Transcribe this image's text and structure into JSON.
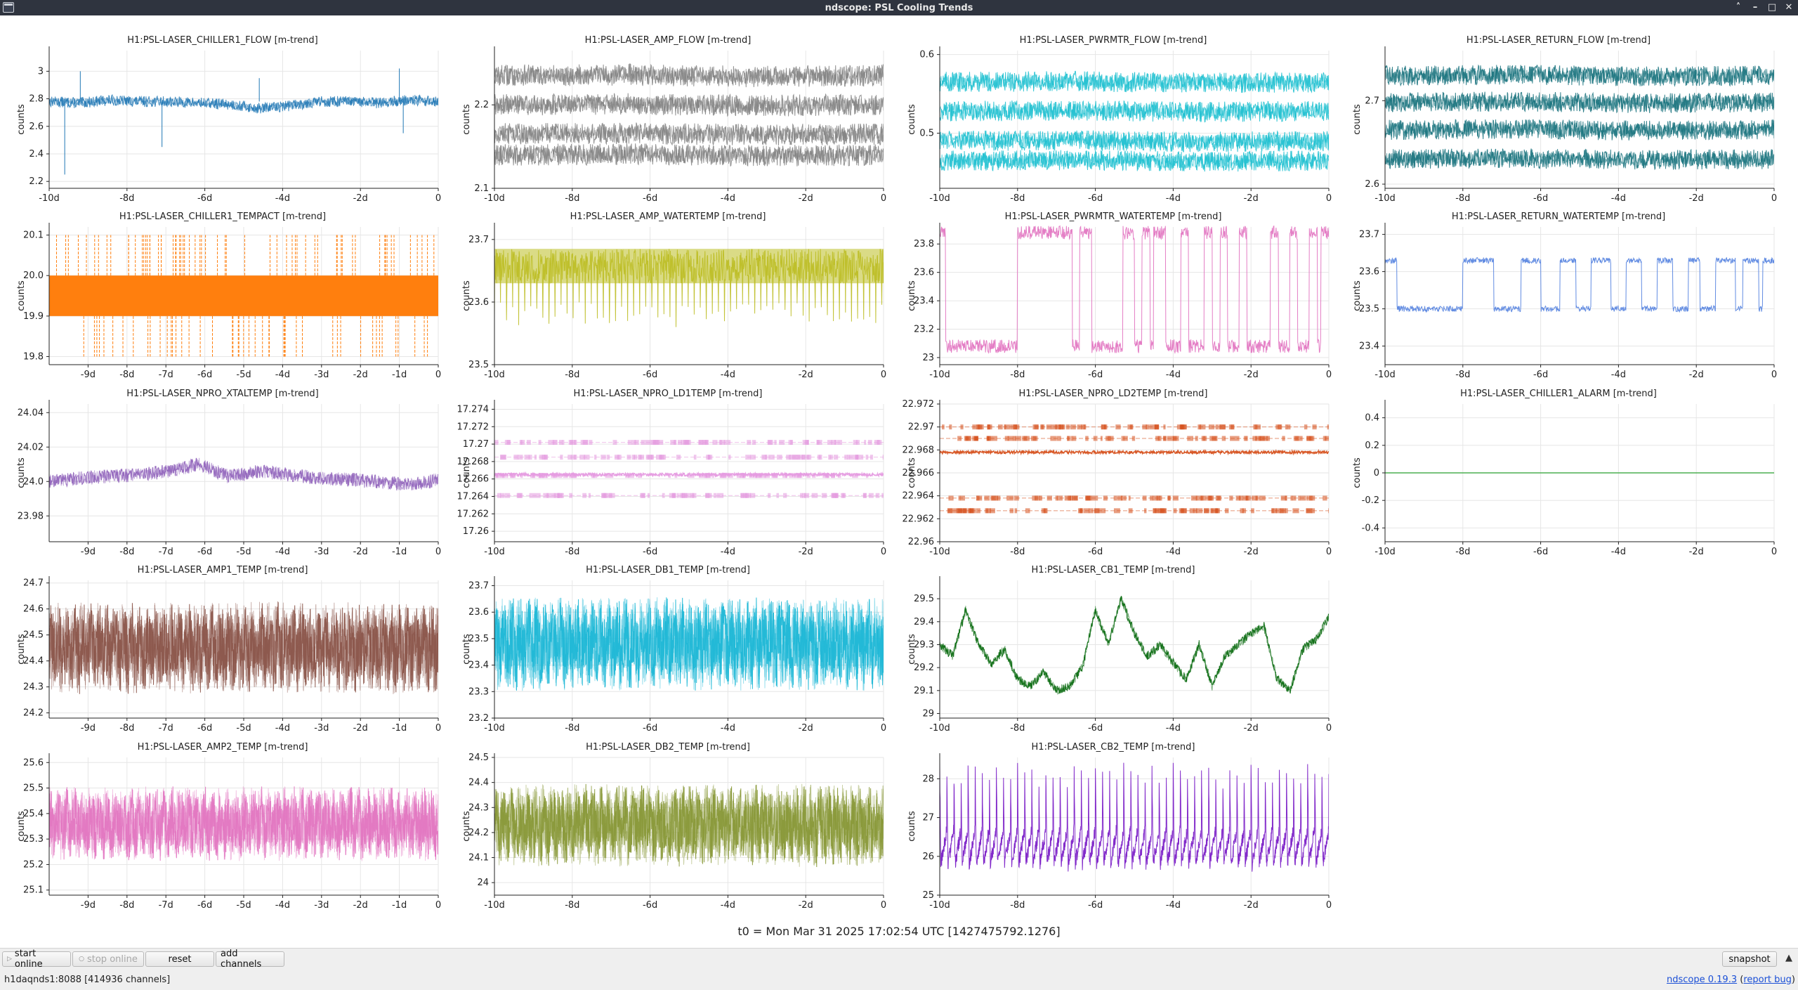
{
  "window": {
    "title": "ndscope: PSL Cooling Trends",
    "controls": [
      "˄",
      "–",
      "□",
      "✕"
    ]
  },
  "t0_label": "t0 = Mon Mar 31 2025 17:02:54 UTC [1427475792.1276]",
  "toolbar": {
    "start_online": "start online",
    "stop_online": "stop online",
    "reset": "reset",
    "add_channels": "add channels",
    "snapshot": "snapshot",
    "snapshot_arrow": "▲"
  },
  "status": {
    "server": "h1daqnds1:8088 [414936 channels]",
    "app_link": "ndscope 0.19.3",
    "report_bug_prefix": "(",
    "report_bug": "report bug",
    "report_bug_suffix": ")"
  },
  "colors": {
    "titlebar": "#2f343f",
    "grid": "#e6e6e6",
    "axis": "#222222"
  },
  "chart_data": [
    {
      "type": "line",
      "title": "H1:PSL-LASER_CHILLER1_FLOW [m-trend]",
      "ylabel": "counts",
      "ylim": [
        2.15,
        3.15
      ],
      "yticks": [
        2.2,
        2.4,
        2.6,
        2.8,
        3
      ],
      "xlim": [
        -10,
        0
      ],
      "xticks": [
        -10,
        -8,
        -6,
        -4,
        -2,
        0
      ],
      "xticklabels": [
        "-10d",
        "-8d",
        "-6d",
        "-4d",
        "-2d",
        "0"
      ],
      "color": "#1f77b4",
      "pattern": "bands",
      "series": [
        {
          "values": [
            2.78,
            2.77,
            2.79,
            2.78,
            2.78,
            2.77,
            2.76,
            2.73,
            2.75,
            2.78,
            2.78,
            2.77,
            2.79,
            2.78
          ]
        }
      ],
      "band_halfwidth": 0.04,
      "spikes": [
        [
          -9.6,
          2.25
        ],
        [
          -9.2,
          3.0
        ],
        [
          -7.1,
          2.45
        ],
        [
          -4.6,
          2.95
        ],
        [
          -1.0,
          3.02
        ],
        [
          -0.9,
          2.55
        ]
      ]
    },
    {
      "type": "line",
      "title": "H1:PSL-LASER_AMP_FLOW [m-trend]",
      "ylabel": "counts",
      "ylim": [
        2.1,
        2.265
      ],
      "yticks": [
        2.1,
        2.2
      ],
      "xlim": [
        -10,
        0
      ],
      "xticks": [
        -10,
        -8,
        -6,
        -4,
        -2,
        0
      ],
      "xticklabels": [
        "-10d",
        "-8d",
        "-6d",
        "-4d",
        "-2d",
        "0"
      ],
      "color": "#7f7f7f",
      "pattern": "bands",
      "series": [
        {
          "values": [
            2.235,
            2.236,
            2.234,
            2.235
          ]
        },
        {
          "values": [
            2.2,
            2.201,
            2.199,
            2.2
          ]
        },
        {
          "values": [
            2.165,
            2.166,
            2.164,
            2.165
          ]
        },
        {
          "values": [
            2.14,
            2.141,
            2.139,
            2.14
          ]
        }
      ],
      "band_halfwidth": 0.013
    },
    {
      "type": "line",
      "title": "H1:PSL-LASER_PWRMTR_FLOW [m-trend]",
      "ylabel": "counts",
      "ylim": [
        0.43,
        0.605
      ],
      "yticks": [
        0.5,
        0.6
      ],
      "xlim": [
        -10,
        0
      ],
      "xticks": [
        -10,
        -8,
        -6,
        -4,
        -2,
        0
      ],
      "xticklabels": [
        "-10d",
        "-8d",
        "-6d",
        "-4d",
        "-2d",
        "0"
      ],
      "color": "#17becf",
      "pattern": "bands",
      "series": [
        {
          "values": [
            0.565,
            0.566,
            0.564,
            0.565
          ]
        },
        {
          "values": [
            0.528,
            0.529,
            0.527,
            0.528
          ]
        },
        {
          "values": [
            0.49,
            0.491,
            0.489,
            0.49
          ]
        },
        {
          "values": [
            0.465,
            0.466,
            0.464,
            0.465
          ]
        }
      ],
      "band_halfwidth": 0.013
    },
    {
      "type": "line",
      "title": "H1:PSL-LASER_RETURN_FLOW [m-trend]",
      "ylabel": "counts",
      "ylim": [
        2.595,
        2.76
      ],
      "yticks": [
        2.6,
        2.7
      ],
      "xlim": [
        -10,
        0
      ],
      "xticks": [
        -10,
        -8,
        -6,
        -4,
        -2,
        0
      ],
      "xticklabels": [
        "-10d",
        "-8d",
        "-6d",
        "-4d",
        "-2d",
        "0"
      ],
      "color": "#136f7a",
      "pattern": "bands",
      "series": [
        {
          "values": [
            2.73,
            2.731,
            2.729,
            2.73
          ]
        },
        {
          "values": [
            2.698,
            2.699,
            2.697,
            2.698
          ]
        },
        {
          "values": [
            2.665,
            2.666,
            2.664,
            2.665
          ]
        },
        {
          "values": [
            2.63,
            2.631,
            2.629,
            2.63
          ]
        }
      ],
      "band_halfwidth": 0.012
    },
    {
      "type": "line",
      "title": "H1:PSL-LASER_CHILLER1_TEMPACT [m-trend]",
      "ylabel": "counts",
      "ylim": [
        19.78,
        20.12
      ],
      "yticks": [
        19.8,
        19.9,
        20.0,
        20.1
      ],
      "yticklabels": [
        "19.8",
        "19.9",
        "20.0",
        "20.1"
      ],
      "xlim": [
        -10,
        0
      ],
      "xticks": [
        -9,
        -8,
        -7,
        -6,
        -5,
        -4,
        -3,
        -2,
        -1,
        0
      ],
      "xticklabels": [
        "-9d",
        "-8d",
        "-7d",
        "-6d",
        "-5d",
        "-4d",
        "-3d",
        "-2d",
        "-1d",
        "0"
      ],
      "color": "#ff7f0e",
      "pattern": "solidband",
      "band": [
        19.9,
        20.0
      ],
      "spike_range": [
        19.8,
        20.1
      ]
    },
    {
      "type": "line",
      "title": "H1:PSL-LASER_AMP_WATERTEMP [m-trend]",
      "ylabel": "counts",
      "ylim": [
        23.5,
        23.72
      ],
      "yticks": [
        23.5,
        23.6,
        23.7
      ],
      "xlim": [
        -10,
        0
      ],
      "xticks": [
        -10,
        -8,
        -6,
        -4,
        -2,
        0
      ],
      "xticklabels": [
        "-10d",
        "-8d",
        "-6d",
        "-4d",
        "-2d",
        "0"
      ],
      "color": "#bcbd22",
      "pattern": "topband",
      "band": [
        23.63,
        23.685
      ],
      "dips_to": 23.56
    },
    {
      "type": "line",
      "title": "H1:PSL-LASER_PWRMTR_WATERTEMP [m-trend]",
      "ylabel": "counts",
      "ylim": [
        22.95,
        23.92
      ],
      "yticks": [
        23,
        23.2,
        23.4,
        23.6,
        23.8
      ],
      "xlim": [
        -10,
        0
      ],
      "xticks": [
        -10,
        -8,
        -6,
        -4,
        -2,
        0
      ],
      "xticklabels": [
        "-10d",
        "-8d",
        "-6d",
        "-4d",
        "-2d",
        "0"
      ],
      "color": "#e377c2",
      "pattern": "square",
      "levels": [
        23.08,
        23.88
      ],
      "high_intervals": [
        [
          -10,
          -9.85
        ],
        [
          -8.0,
          -6.6
        ],
        [
          -6.4,
          -6.1
        ],
        [
          -5.3,
          -5.0
        ],
        [
          -4.8,
          -4.6
        ],
        [
          -4.5,
          -4.2
        ],
        [
          -3.8,
          -3.6
        ],
        [
          -3.2,
          -3.0
        ],
        [
          -2.8,
          -2.6
        ],
        [
          -2.3,
          -2.1
        ],
        [
          -1.5,
          -1.3
        ],
        [
          -1.0,
          -0.8
        ],
        [
          -0.5,
          -0.3
        ],
        [
          -0.2,
          0
        ]
      ]
    },
    {
      "type": "line",
      "title": "H1:PSL-LASER_RETURN_WATERTEMP [m-trend]",
      "ylabel": "counts",
      "ylim": [
        23.35,
        23.72
      ],
      "yticks": [
        23.4,
        23.5,
        23.6,
        23.7
      ],
      "xlim": [
        -10,
        0
      ],
      "xticks": [
        -10,
        -8,
        -6,
        -4,
        -2,
        0
      ],
      "xticklabels": [
        "-10d",
        "-8d",
        "-6d",
        "-4d",
        "-2d",
        "0"
      ],
      "color": "#5a86e0",
      "pattern": "square",
      "levels": [
        23.5,
        23.63
      ],
      "high_intervals": [
        [
          -10,
          -9.7
        ],
        [
          -8.0,
          -7.2
        ],
        [
          -6.5,
          -6.0
        ],
        [
          -5.5,
          -5.1
        ],
        [
          -4.7,
          -4.2
        ],
        [
          -3.8,
          -3.4
        ],
        [
          -3.0,
          -2.6
        ],
        [
          -2.2,
          -1.9
        ],
        [
          -1.5,
          -1.0
        ],
        [
          -0.8,
          -0.4
        ],
        [
          -0.3,
          0
        ]
      ]
    },
    {
      "type": "line",
      "title": "H1:PSL-LASER_NPRO_XTALTEMP [m-trend]",
      "ylabel": "counts",
      "ylim": [
        23.965,
        24.045
      ],
      "yticks": [
        23.98,
        24.0,
        24.02,
        24.04
      ],
      "yticklabels": [
        "23.98",
        "24.0",
        "24.02",
        "24.04"
      ],
      "xlim": [
        -10,
        0
      ],
      "xticks": [
        -9,
        -8,
        -7,
        -6,
        -5,
        -4,
        -3,
        -2,
        -1,
        0
      ],
      "xticklabels": [
        "-9d",
        "-8d",
        "-7d",
        "-6d",
        "-5d",
        "-4d",
        "-3d",
        "-2d",
        "-1d",
        "0"
      ],
      "color": "#9467bd",
      "pattern": "wander",
      "series": [
        {
          "values": [
            24.0,
            24.002,
            24.003,
            24.004,
            24.006,
            24.01,
            24.003,
            24.006,
            24.004,
            24.002,
            24.001,
            24.0,
            23.998,
            24.001
          ]
        }
      ],
      "band_halfwidth": 0.004
    },
    {
      "type": "line",
      "title": "H1:PSL-LASER_NPRO_LD1TEMP [m-trend]",
      "ylabel": "counts",
      "ylim": [
        17.2588,
        17.2746
      ],
      "yticks": [
        17.26,
        17.262,
        17.264,
        17.266,
        17.268,
        17.27,
        17.272,
        17.274
      ],
      "xlim": [
        -10,
        0
      ],
      "xticks": [
        -10,
        -8,
        -6,
        -4,
        -2,
        0
      ],
      "xticklabels": [
        "-10d",
        "-8d",
        "-6d",
        "-4d",
        "-2d",
        "0"
      ],
      "color": "#e59ae0",
      "pattern": "quantized",
      "levels": [
        17.2702,
        17.2685,
        17.2664,
        17.2641
      ],
      "main": 17.2665
    },
    {
      "type": "line",
      "title": "H1:PSL-LASER_NPRO_LD2TEMP [m-trend]",
      "ylabel": "counts",
      "ylim": [
        22.96,
        22.972
      ],
      "yticks": [
        22.96,
        22.962,
        22.964,
        22.966,
        22.968,
        22.97,
        22.972
      ],
      "xlim": [
        -10,
        0
      ],
      "xticks": [
        -10,
        -8,
        -6,
        -4,
        -2,
        0
      ],
      "xticklabels": [
        "-10d",
        "-8d",
        "-6d",
        "-4d",
        "-2d",
        "0"
      ],
      "color": "#d6501c",
      "pattern": "quantized",
      "levels": [
        22.97,
        22.969,
        22.9638,
        22.9627
      ],
      "main": 22.9678
    },
    {
      "type": "line",
      "title": "H1:PSL-LASER_CHILLER1_ALARM [m-trend]",
      "ylabel": "counts",
      "ylim": [
        -0.5,
        0.5
      ],
      "yticks": [
        -0.4,
        -0.2,
        0,
        0.2,
        0.4
      ],
      "xlim": [
        -10,
        0
      ],
      "xticks": [
        -10,
        -8,
        -6,
        -4,
        -2,
        0
      ],
      "xticklabels": [
        "-10d",
        "-8d",
        "-6d",
        "-4d",
        "-2d",
        "0"
      ],
      "color": "#4caf50",
      "pattern": "flat",
      "value": 0
    },
    {
      "type": "line",
      "title": "H1:PSL-LASER_AMP1_TEMP [m-trend]",
      "ylabel": "counts",
      "ylim": [
        24.18,
        24.71
      ],
      "yticks": [
        24.2,
        24.3,
        24.4,
        24.5,
        24.6,
        24.7
      ],
      "xlim": [
        -10,
        0
      ],
      "xticks": [
        -9,
        -8,
        -7,
        -6,
        -5,
        -4,
        -3,
        -2,
        -1,
        0
      ],
      "xticklabels": [
        "-9d",
        "-8d",
        "-7d",
        "-6d",
        "-5d",
        "-4d",
        "-3d",
        "-2d",
        "-1d",
        "0"
      ],
      "color": "#8c564b",
      "pattern": "oscillate",
      "center": 24.45,
      "amp": 0.17
    },
    {
      "type": "line",
      "title": "H1:PSL-LASER_DB1_TEMP [m-trend]",
      "ylabel": "counts",
      "ylim": [
        23.2,
        23.72
      ],
      "yticks": [
        23.2,
        23.3,
        23.4,
        23.5,
        23.6,
        23.7
      ],
      "xlim": [
        -10,
        0
      ],
      "xticks": [
        -10,
        -8,
        -6,
        -4,
        -2,
        0
      ],
      "xticklabels": [
        "-10d",
        "-8d",
        "-6d",
        "-4d",
        "-2d",
        "0"
      ],
      "color": "#1fb8d6",
      "pattern": "oscillate",
      "center": 23.48,
      "amp": 0.17
    },
    {
      "type": "line",
      "title": "H1:PSL-LASER_CB1_TEMP [m-trend]",
      "ylabel": "counts",
      "ylim": [
        28.98,
        29.58
      ],
      "yticks": [
        29,
        29.1,
        29.2,
        29.3,
        29.4,
        29.5
      ],
      "xlim": [
        -10,
        0
      ],
      "xticks": [
        -10,
        -8,
        -6,
        -4,
        -2,
        0
      ],
      "xticklabels": [
        "-10d",
        "-8d",
        "-6d",
        "-4d",
        "-2d",
        "0"
      ],
      "color": "#0e6e14",
      "pattern": "wander",
      "series": [
        {
          "values": [
            29.3,
            29.25,
            29.45,
            29.3,
            29.22,
            29.28,
            29.15,
            29.12,
            29.18,
            29.1,
            29.12,
            29.2,
            29.45,
            29.3,
            29.5,
            29.35,
            29.25,
            29.3,
            29.22,
            29.15,
            29.3,
            29.12,
            29.25,
            29.3,
            29.35,
            29.38,
            29.15,
            29.1,
            29.28,
            29.32,
            29.42
          ]
        }
      ],
      "band_halfwidth": 0.02
    },
    {
      "type": "line",
      "title": "H1:PSL-LASER_AMP2_TEMP [m-trend]",
      "ylabel": "counts",
      "ylim": [
        25.08,
        25.62
      ],
      "yticks": [
        25.1,
        25.2,
        25.3,
        25.4,
        25.5,
        25.6
      ],
      "xlim": [
        -10,
        0
      ],
      "xticks": [
        -9,
        -8,
        -7,
        -6,
        -5,
        -4,
        -3,
        -2,
        -1,
        0
      ],
      "xticklabels": [
        "-9d",
        "-8d",
        "-7d",
        "-6d",
        "-5d",
        "-4d",
        "-3d",
        "-2d",
        "-1d",
        "0"
      ],
      "color": "#e377c2",
      "pattern": "oscillate",
      "center": 25.36,
      "amp": 0.14
    },
    {
      "type": "line",
      "title": "H1:PSL-LASER_DB2_TEMP [m-trend]",
      "ylabel": "counts",
      "ylim": [
        23.95,
        24.5
      ],
      "yticks": [
        24,
        24.1,
        24.2,
        24.3,
        24.4,
        24.5
      ],
      "xlim": [
        -10,
        0
      ],
      "xticks": [
        -10,
        -8,
        -6,
        -4,
        -2,
        0
      ],
      "xticklabels": [
        "-10d",
        "-8d",
        "-6d",
        "-4d",
        "-2d",
        "0"
      ],
      "color": "#8a9a3a",
      "pattern": "oscillate",
      "center": 24.23,
      "amp": 0.16
    },
    {
      "type": "line",
      "title": "H1:PSL-LASER_CB2_TEMP [m-trend]",
      "ylabel": "counts",
      "ylim": [
        25.0,
        28.55
      ],
      "yticks": [
        25,
        26,
        27,
        28
      ],
      "xlim": [
        -10,
        0
      ],
      "xticks": [
        -10,
        -8,
        -6,
        -4,
        -2,
        0
      ],
      "xticklabels": [
        "-10d",
        "-8d",
        "-6d",
        "-4d",
        "-2d",
        "0"
      ],
      "color": "#7b1fc7",
      "pattern": "sawtooth",
      "low": 25.8,
      "high": 28.3
    }
  ]
}
